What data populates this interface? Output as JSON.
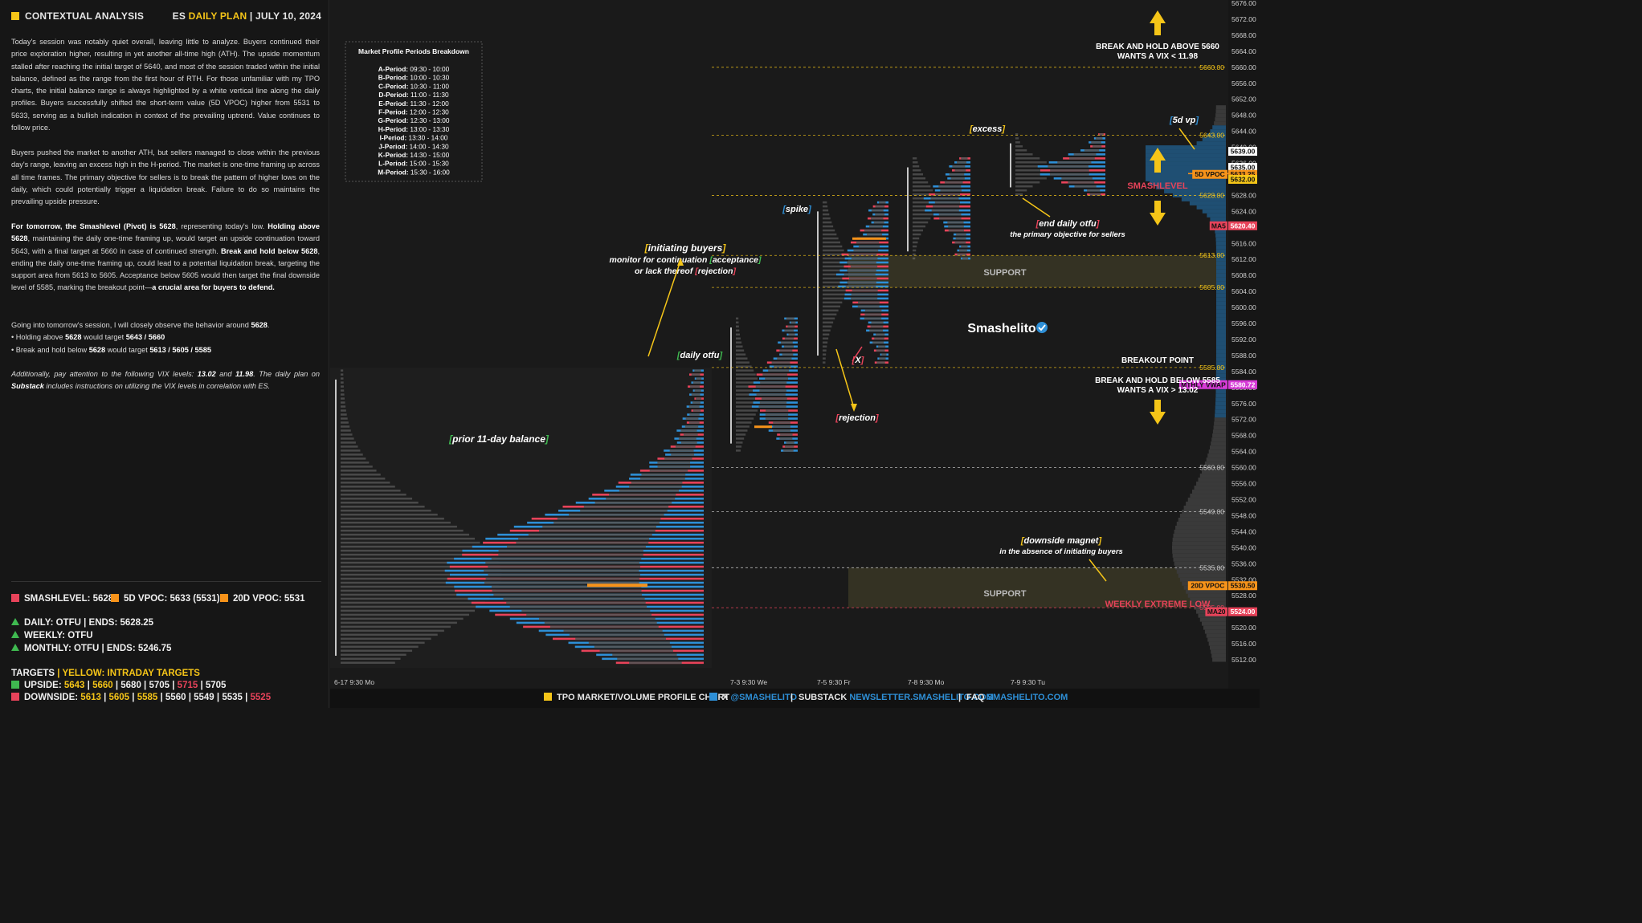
{
  "header": {
    "section_title": "CONTEXTUAL ANALYSIS",
    "symbol": "ES",
    "plan_label": "DAILY PLAN",
    "separator": "|",
    "date": "JULY 10, 2024"
  },
  "analysis": {
    "p1": "Today's session was notably quiet overall, leaving little to analyze. Buyers continued their price exploration higher, resulting in yet another all-time high (ATH). The upside momentum stalled after reaching the initial target of 5640, and most of the session traded within the initial balance, defined as the range from the first hour of RTH. For those unfamiliar with my TPO charts, the initial balance range is always highlighted by a white vertical line along the daily profiles. Buyers successfully shifted the short-term value (5D VPOC) higher from 5531 to 5633, serving as a bullish indication in context of the prevailing uptrend. Value continues to follow price.",
    "p2": "Buyers pushed the market to another ATH, but sellers managed to close within the previous day's range, leaving an excess high in the H-period. The market is one-time framing up across all time frames. The primary objective for sellers is to break the pattern of higher lows on the daily, which could potentially trigger a liquidation break. Failure to do so maintains the prevailing upside pressure.",
    "p3_a": "For tomorrow, the Smashlevel (Pivot) is 5628",
    "p3_b": ", representing today's low. ",
    "p3_c": "Holding above 5628",
    "p3_d": ", maintaining the daily one-time framing up, would target an upside continuation toward 5643, with a final target at 5660 in case of continued strength. ",
    "p3_e": "Break and hold below 5628",
    "p3_f": ", ending the daily one-time framing up, could lead to a potential liquidation break, targeting the support area from 5613 to 5605. Acceptance below 5605 would then target the final downside level of 5585, marking the breakout point—",
    "p3_g": "a crucial area for buyers to defend.",
    "p4_a": "Going into tomorrow's session, I will closely observe the behavior around ",
    "p4_b": "5628",
    "p4_c": ".",
    "bullet1_a": "• Holding above ",
    "bullet1_b": "5628",
    "bullet1_c": " would target ",
    "bullet1_d": "5643 / 5660",
    "bullet2_a": "• Break and hold below ",
    "bullet2_b": "5628",
    "bullet2_c": " would target ",
    "bullet2_d": "5613 / 5605 / 5585",
    "p5_a": "Additionally, pay attention to the following VIX levels: ",
    "p5_b": "13.02",
    "p5_c": " and ",
    "p5_d": "11.98",
    "p5_e": ". The daily plan on ",
    "p5_f": "Substack",
    "p5_g": " includes instructions on utilizing the VIX levels in correlation with ES."
  },
  "levels_row": {
    "smashlevel": "SMASHLEVEL: 5628",
    "vpoc5d": "5D VPOC: 5633 (5531)",
    "vpoc20d": "20D VPOC: 5531"
  },
  "timeframes": {
    "daily": "DAILY: OTFU  |  ENDS: 5628.25",
    "weekly": "WEEKLY: OTFU",
    "monthly": "MONTHLY: OTFU  |  ENDS: 5246.75"
  },
  "targets": {
    "title_a": "TARGETS",
    "title_sep": "|",
    "title_b": "YELLOW: INTRADAY TARGETS",
    "upside_label": "UPSIDE:",
    "upside_yellow": [
      "5643",
      "5660"
    ],
    "upside_white": [
      "5680",
      "5705"
    ],
    "upside_red": [
      "5715"
    ],
    "upside_last": "5705",
    "downside_label": "DOWNSIDE:",
    "downside_yellow": [
      "5613",
      "5605",
      "5585"
    ],
    "downside_white": [
      "5560",
      "5549",
      "5535"
    ],
    "downside_red": [
      "5525"
    ]
  },
  "periods_box": {
    "title": "Market Profile Periods Breakdown",
    "rows": [
      {
        "k": "A-Period:",
        "v": " 09:30 - 10:00"
      },
      {
        "k": "B-Period:",
        "v": " 10:00 - 10:30"
      },
      {
        "k": "C-Period:",
        "v": " 10:30 - 11:00"
      },
      {
        "k": "D-Period:",
        "v": " 11:00 - 11:30"
      },
      {
        "k": "E-Period:",
        "v": " 11:30 - 12:00"
      },
      {
        "k": "F-Period:",
        "v": " 12:00 - 12:30"
      },
      {
        "k": "G-Period:",
        "v": " 12:30 - 13:00"
      },
      {
        "k": "H-Period:",
        "v": " 13:00 - 13:30"
      },
      {
        "k": "I-Period:",
        "v": " 13:30 - 14:00"
      },
      {
        "k": "J-Period:",
        "v": " 14:00 - 14:30"
      },
      {
        "k": "K-Period:",
        "v": " 14:30 - 15:00"
      },
      {
        "k": "L-Period:",
        "v": " 15:00 - 15:30"
      },
      {
        "k": "M-Period:",
        "v": " 15:30 - 16:00"
      }
    ]
  },
  "annotations": {
    "break_above_1": "BREAK AND HOLD ABOVE 5660",
    "break_above_2": "WANTS A VIX < 11.98",
    "break_below_1": "BREAK AND HOLD BELOW 5585",
    "break_below_2": "WANTS A VIX > 13.02",
    "breakout_point": "BREAKOUT POINT",
    "smashlevel": "SMASHLEVEL",
    "support": "SUPPORT",
    "weekly_extreme_low": "WEEKLY EXTREME LOW",
    "brand": "Smashelito",
    "initiating_1": "initiating buyers",
    "initiating_2": "monitor for continuation",
    "initiating_3": "acceptance",
    "initiating_4": "or lack thereof",
    "initiating_5": "rejection",
    "daily_otfu": "daily otfu",
    "prior_balance": "prior 11-day balance",
    "spike": "spike",
    "x_mark": "X",
    "rejection": "rejection",
    "excess": "excess",
    "end_otfu_1": "end daily otfu",
    "end_otfu_2": "the primary objective for sellers",
    "vp5d": "5d vp",
    "downside_magnet_1": "downside magnet",
    "downside_magnet_2": "in the absence of initiating buyers"
  },
  "colors": {
    "yellow": "#f5c518",
    "red": "#e8435a",
    "blue": "#2e8fd6",
    "green": "#3fb950",
    "orange": "#f7931a",
    "magenta": "#d63ad6",
    "support_fill": "#3a3726"
  },
  "chart_data": {
    "type": "tpo-volume-profile",
    "title": "TPO MARKET/VOLUME PROFILE CHART",
    "y_axis_ticks": [
      5512,
      5516,
      5520,
      5524,
      5528,
      5532,
      5536,
      5540,
      5544,
      5548,
      5552,
      5556,
      5560,
      5564,
      5568,
      5572,
      5576,
      5580,
      5584,
      5588,
      5592,
      5596,
      5600,
      5604,
      5608,
      5612,
      5616,
      5620,
      5624,
      5628,
      5632,
      5636,
      5640,
      5644,
      5648,
      5652,
      5656,
      5660,
      5664,
      5668,
      5672,
      5676
    ],
    "ylim": [
      5510,
      5676
    ],
    "x_labels": [
      "6-17  9:30 Mo",
      "7-3  9:30 We",
      "7-5  9:30 Fr",
      "7-8  9:30 Mo",
      "7-9  9:30 Tu"
    ],
    "level_lines": [
      {
        "label": "5660.00",
        "value": 5660,
        "color": "#f5c518",
        "style": "dashed"
      },
      {
        "label": "5643.00",
        "value": 5643,
        "color": "#f5c518",
        "style": "dashed"
      },
      {
        "label": "5628.00",
        "value": 5628,
        "color": "#f5c518",
        "style": "dashed"
      },
      {
        "label": "5613.00",
        "value": 5613,
        "color": "#f5c518",
        "style": "dashed"
      },
      {
        "label": "5605.00",
        "value": 5605,
        "color": "#f5c518",
        "style": "dashed"
      },
      {
        "label": "5585.00",
        "value": 5585,
        "color": "#f5c518",
        "style": "dashed"
      },
      {
        "label": "5560.00",
        "value": 5560,
        "color": "#cfcfcf",
        "style": "dashed"
      },
      {
        "label": "5549.00",
        "value": 5549,
        "color": "#cfcfcf",
        "style": "dashed"
      },
      {
        "label": "5535.00",
        "value": 5535,
        "color": "#cfcfcf",
        "style": "dashed"
      },
      {
        "label": "5525.00",
        "value": 5525,
        "color": "#e8435a",
        "style": "dashed"
      }
    ],
    "price_tags": [
      {
        "label": "5639.00",
        "value": 5639,
        "bg": "#ffffff",
        "fg": "#111111"
      },
      {
        "label": "5635.00",
        "value": 5635,
        "bg": "#ffffff",
        "fg": "#111111"
      },
      {
        "label": "5633.25",
        "value": 5633.25,
        "bg": "#f7931a",
        "fg": "#111111"
      },
      {
        "label": "5632.00",
        "value": 5632,
        "bg": "#f5c518",
        "fg": "#111111"
      },
      {
        "label": "5620.40",
        "value": 5620.4,
        "bg": "#e8435a",
        "fg": "#ffffff"
      },
      {
        "label": "5580.72",
        "value": 5580.72,
        "bg": "#d63ad6",
        "fg": "#ffffff"
      },
      {
        "label": "5530.50",
        "value": 5530.5,
        "bg": "#f7931a",
        "fg": "#111111"
      },
      {
        "label": "5524.00",
        "value": 5524,
        "bg": "#e8435a",
        "fg": "#ffffff"
      }
    ],
    "side_labels": [
      {
        "label": "5D VPOC",
        "value": 5633.25,
        "color": "#f7931a"
      },
      {
        "label": "MA5",
        "value": 5620.4,
        "color": "#e8435a"
      },
      {
        "label": "MTHLY VWAP",
        "value": 5580.72,
        "color": "#d63ad6"
      },
      {
        "label": "20D VPOC",
        "value": 5530.5,
        "color": "#f7931a"
      },
      {
        "label": "MA20",
        "value": 5524,
        "color": "#e8435a"
      }
    ],
    "support_zones": [
      {
        "label": "SUPPORT",
        "from": 5605,
        "to": 5613
      },
      {
        "label": "SUPPORT",
        "from": 5525,
        "to": 5535
      }
    ]
  },
  "bottom_bar": {
    "chart_label": "TPO MARKET/VOLUME PROFILE CHART",
    "x_label": "X",
    "x_handle": "@SMASHELITO",
    "substack_label": "SUBSTACK",
    "substack_url": "NEWSLETTER.SMASHELITO.COM",
    "faq_label": "FAQ",
    "faq_url": "SMASHELITO.COM",
    "sep": "|"
  }
}
